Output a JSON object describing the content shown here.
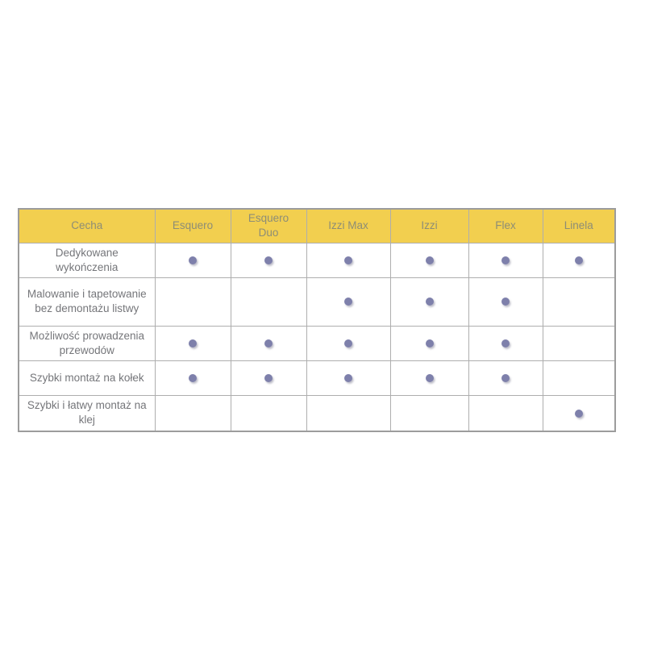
{
  "table": {
    "title_semantic": "feature-comparison-table",
    "header": {
      "feature_column": "Cecha",
      "products": [
        "Esquero",
        "Esquero Duo",
        "Izzi Max",
        "Izzi",
        "Flex",
        "Linela"
      ]
    },
    "rows": [
      {
        "feature": "Dedykowane wykończenia",
        "dots": [
          true,
          true,
          true,
          true,
          true,
          true
        ]
      },
      {
        "feature": "Malowanie i tapetowanie bez demontażu listwy",
        "dots": [
          false,
          false,
          true,
          true,
          true,
          false
        ]
      },
      {
        "feature": "Możliwość prowadzenia przewodów",
        "dots": [
          true,
          true,
          true,
          true,
          true,
          false
        ]
      },
      {
        "feature": "Szybki montaż na kołek",
        "dots": [
          true,
          true,
          true,
          true,
          true,
          false
        ]
      },
      {
        "feature": "Szybki i łatwy montaż na klej",
        "dots": [
          false,
          false,
          false,
          false,
          false,
          true
        ]
      }
    ],
    "dot_icon": "filled-circle",
    "colors": {
      "header_bg": "#F2CF4F",
      "header_text": "#8D8D76",
      "body_text": "#75767A",
      "dot": "#7E80AB",
      "border_outer": "#9C9C9C",
      "border_inner": "#AEAEAE",
      "page_bg": "#FFFFFF"
    }
  }
}
